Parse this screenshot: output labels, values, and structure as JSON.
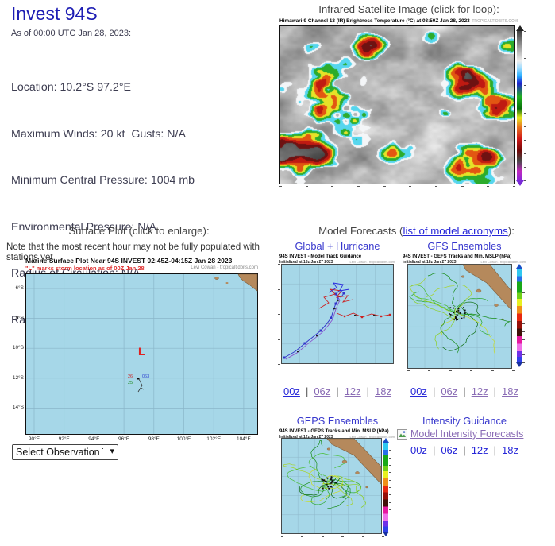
{
  "storm": {
    "title": "Invest 94S",
    "as_of": "As of 00:00 UTC Jan 28, 2023:",
    "details": [
      "Location: 10.2°S 97.2°E",
      "Maximum Winds: 20 kt  Gusts: N/A",
      "Minimum Central Pressure: 1004 mb",
      "Environmental Pressure: N/A",
      "Radius of Circulation: N/A",
      "Radius of Maximum wind: N/A"
    ]
  },
  "satellite": {
    "caption": "Infrared Satellite Image (click for loop):",
    "image_title": "Himawari-9 Channel 13 (IR) Brightness Temperature (°C) at 03:50Z Jan 28, 2023",
    "credit": "TROPICALTIDBITS.COM"
  },
  "surface_plot": {
    "caption": "Surface Plot (click to enlarge):",
    "note": "Note that the most recent hour may not be fully populated with stations yet.",
    "image_title": "Marine Surface Plot Near 94S INVEST 02:45Z-04:15Z Jan 28 2023",
    "subtitle": "\"L\" marks storm location as of 00Z Jan 28",
    "credit": "Levi Cowan - tropicaltidbits.com",
    "storm_marker": "L",
    "station": {
      "red": "26",
      "blue": "063",
      "green": "25"
    },
    "y_labels": [
      "6°S",
      "8°S",
      "10°S",
      "12°S",
      "14°S"
    ],
    "x_labels": [
      "90°E",
      "92°E",
      "94°E",
      "96°E",
      "98°E",
      "100°E",
      "102°E",
      "104°E"
    ],
    "dropdown_label": "Select Observation Time..."
  },
  "models": {
    "caption_prefix": "Model Forecasts (",
    "caption_link": "list of model acronyms",
    "caption_suffix": "):",
    "sep": "|",
    "time_links": [
      "00z",
      "06z",
      "12z",
      "18z"
    ],
    "panels": [
      {
        "heading": "Global + Hurricane Models",
        "image_title": "94S INVEST - Model Track Guidance",
        "init": "Initialized at 18z Jan 27 2023",
        "credit": "Levi Cowan - tropicaltidbits.com"
      },
      {
        "heading": "GFS Ensembles",
        "image_title": "94S INVEST - GEFS Tracks and Min. MSLP (hPa)",
        "init": "Initialized at 18z Jan 27 2023",
        "credit": "Levi Cowan - tropicaltidbits.com"
      },
      {
        "heading": "GEPS Ensembles",
        "image_title": "94S INVEST - GEPS Tracks and Min. MSLP (hPa)",
        "init": "Initialized at 12z Jan 27 2023",
        "credit": "Levi Cowan - tropicaltidbits.com"
      }
    ],
    "intensity": {
      "heading": "Intensity Guidance",
      "link": "Model Intensity Forecasts"
    }
  },
  "colors": {
    "title_blue": "#1e1eb4",
    "heading_blue": "#3737cd",
    "link_blue": "#2626d8",
    "link_visited": "#8a6cb5",
    "ocean": "#a6d7e8",
    "land": "#b5895c",
    "storm_red": "#e02020"
  }
}
